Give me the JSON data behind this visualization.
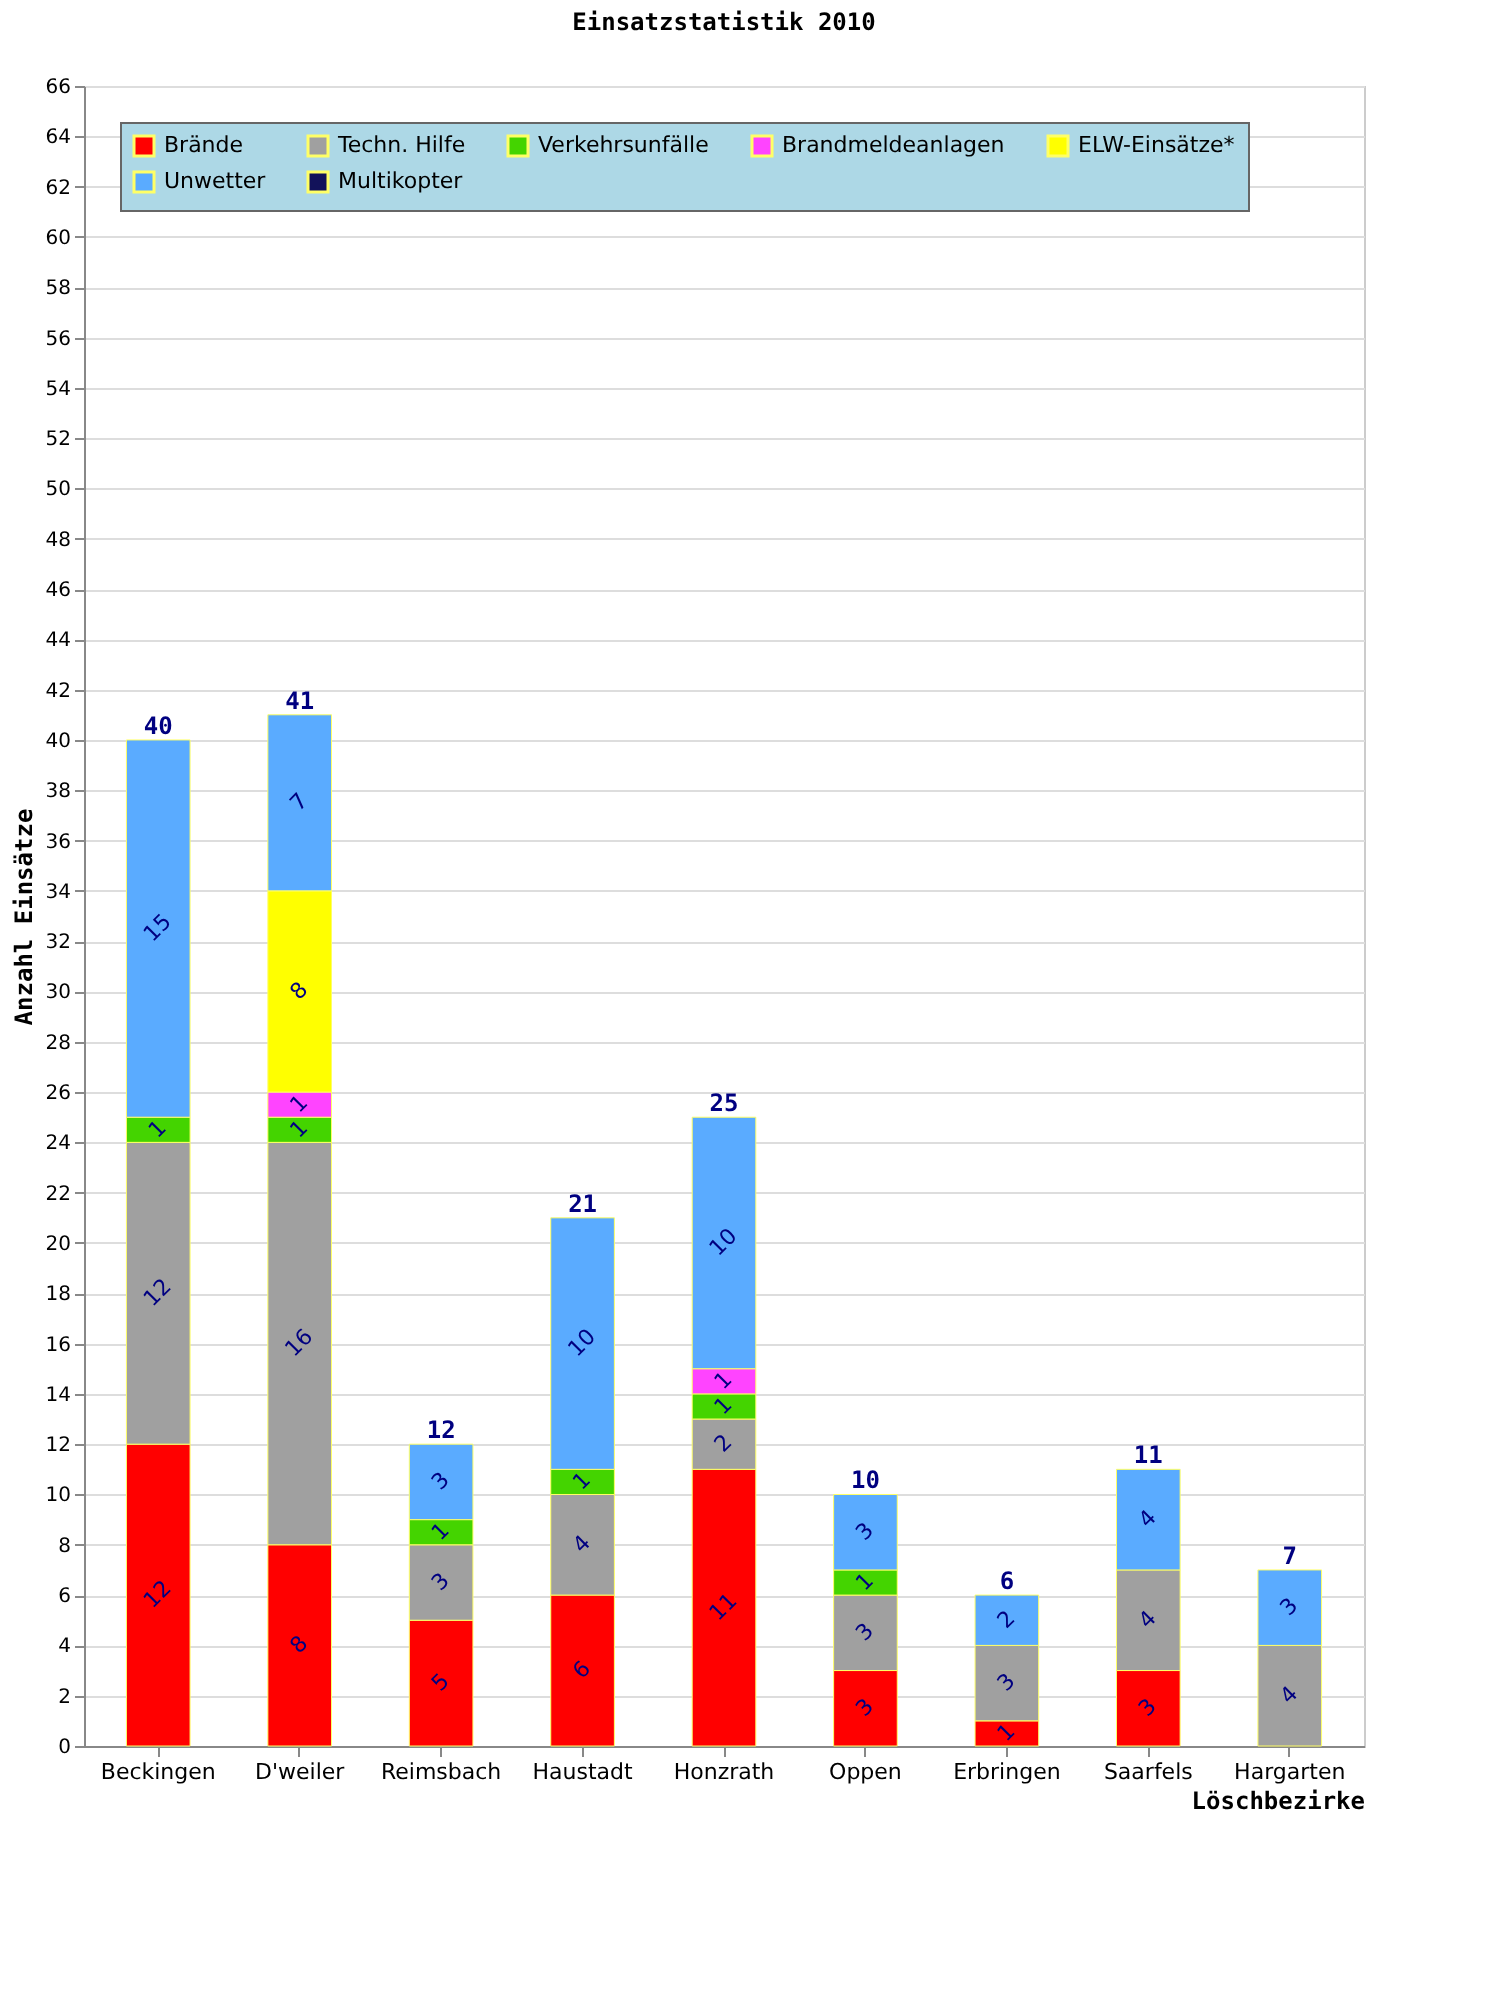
{
  "chart_data": {
    "type": "bar",
    "title": "Einsatzstatistik 2010",
    "xlabel": "Löschbezirke",
    "ylabel": "Anzahl Einsätze",
    "categories": [
      "Beckingen",
      "D'weiler",
      "Reimsbach",
      "Haustadt",
      "Honzrath",
      "Oppen",
      "Erbringen",
      "Saarfels",
      "Hargarten"
    ],
    "stacked": true,
    "series": [
      {
        "name": "Brände",
        "color": "#ff0000",
        "values": [
          12,
          8,
          5,
          6,
          11,
          3,
          1,
          3,
          null
        ]
      },
      {
        "name": "Techn. Hilfe",
        "color": "#a0a0a0",
        "values": [
          12,
          16,
          3,
          4,
          2,
          3,
          3,
          4,
          4
        ]
      },
      {
        "name": "Verkehrsunfälle",
        "color": "#44d400",
        "values": [
          1,
          1,
          1,
          1,
          1,
          1,
          null,
          null,
          null
        ]
      },
      {
        "name": "Brandmeldeanlagen",
        "color": "#ff44ff",
        "values": [
          null,
          1,
          null,
          null,
          1,
          null,
          null,
          null,
          null
        ]
      },
      {
        "name": "ELW-Einsätze*",
        "color": "#ffff00",
        "values": [
          null,
          8,
          null,
          null,
          null,
          null,
          null,
          null,
          null
        ]
      },
      {
        "name": "Unwetter",
        "color": "#5aabff",
        "values": [
          15,
          7,
          3,
          10,
          10,
          3,
          2,
          4,
          3
        ]
      },
      {
        "name": "Multikopter",
        "color": "#12125a",
        "values": [
          null,
          null,
          null,
          null,
          null,
          null,
          null,
          null,
          null
        ]
      }
    ],
    "totals": [
      "40",
      "41",
      "12",
      "21",
      "25",
      "10",
      "6",
      "11",
      "7"
    ],
    "ylim": [
      0,
      66
    ],
    "yticks": [
      0,
      2,
      4,
      6,
      8,
      10,
      12,
      14,
      16,
      18,
      20,
      22,
      24,
      26,
      28,
      30,
      32,
      34,
      36,
      38,
      40,
      42,
      44,
      46,
      48,
      50,
      52,
      54,
      56,
      58,
      60,
      62,
      64,
      66
    ],
    "grid": "y",
    "legend": "top left",
    "data_labels": true
  }
}
